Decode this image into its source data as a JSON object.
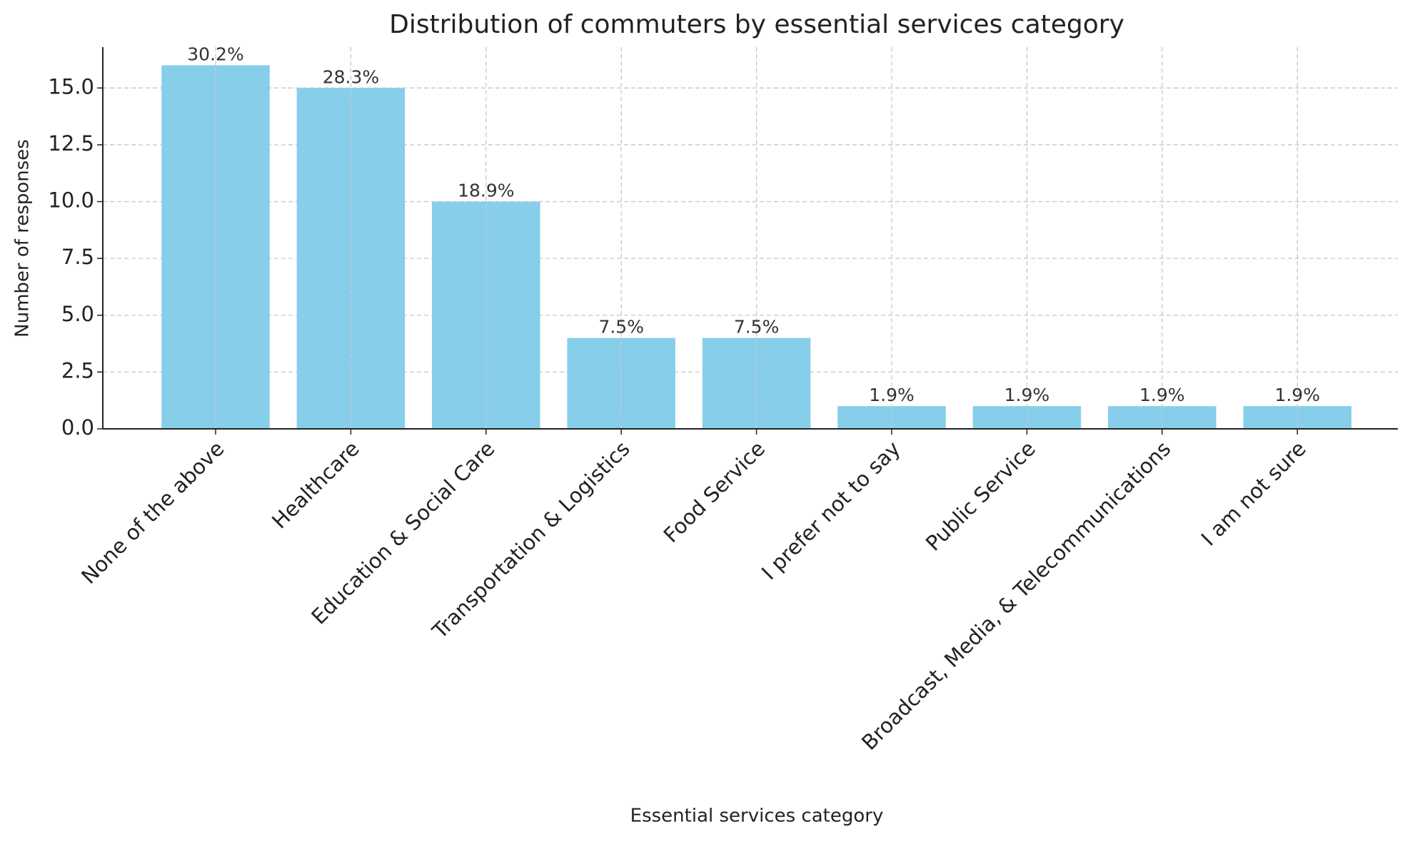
{
  "chart_data": {
    "type": "bar",
    "title": "Distribution of commuters by essential services category",
    "x_label": "Essential services category",
    "y_label": "Number of responses",
    "categories": [
      "None of the above",
      "Healthcare",
      "Education & Social Care",
      "Transportation & Logistics",
      "Food Service",
      "I prefer not to say",
      "Public Service",
      "Broadcast, Media, & Telecommunications",
      "I am not sure"
    ],
    "values": [
      16,
      15,
      10,
      4,
      4,
      1,
      1,
      1,
      1
    ],
    "bar_labels": [
      "30.2%",
      "28.3%",
      "18.9%",
      "7.5%",
      "7.5%",
      "1.9%",
      "1.9%",
      "1.9%",
      "1.9%"
    ],
    "color": "#87ceeb",
    "ylim": [
      0,
      16.8
    ],
    "yticks": [
      {
        "value": 0,
        "label": "0.0"
      },
      2.5,
      {
        "value": 5,
        "label": "5.0"
      },
      7.5,
      {
        "value": 10,
        "label": "10.0"
      },
      12.5,
      {
        "value": 15,
        "label": "15.0"
      }
    ],
    "grid": true
  }
}
